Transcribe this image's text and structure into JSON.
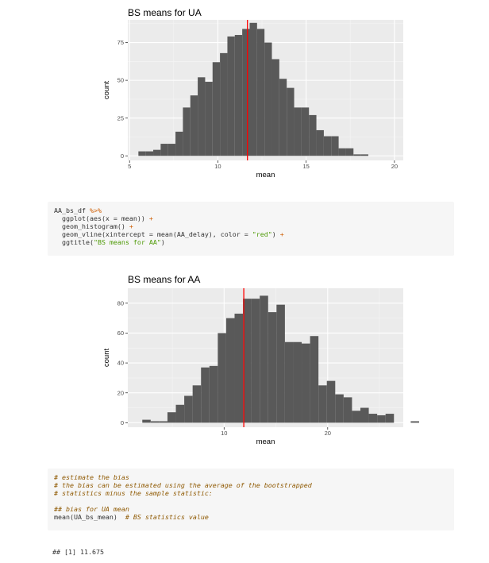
{
  "chart_data": [
    {
      "type": "histogram",
      "title": "BS means for UA",
      "xlabel": "mean",
      "ylabel": "count",
      "xlim": [
        4.9,
        20.5
      ],
      "ylim": [
        -3,
        90
      ],
      "x_ticks": [
        5,
        10,
        15,
        20
      ],
      "x_tick_labels": [
        "5",
        "10",
        "15",
        "20"
      ],
      "y_ticks": [
        0,
        25,
        50,
        75
      ],
      "y_tick_labels": [
        "0",
        "25",
        "50",
        "75"
      ],
      "bin_start": 5.5,
      "bin_width": 0.42,
      "values": [
        3,
        3,
        4,
        8,
        8,
        16,
        32,
        40,
        52,
        49,
        62,
        68,
        79,
        80,
        84,
        88,
        84,
        75,
        64,
        51,
        45,
        32,
        32,
        27,
        17,
        13,
        13,
        5,
        5,
        1,
        1
      ],
      "vline_x": 11.675,
      "bar_color": "#595959",
      "vline_color": "#ff0000",
      "panel_color": "#ebebeb",
      "grid": true
    },
    {
      "type": "histogram",
      "title": "BS means for AA",
      "xlabel": "mean",
      "ylabel": "count",
      "xlim": [
        0.7,
        27.3
      ],
      "ylim": [
        -3,
        90
      ],
      "x_ticks": [
        10,
        20
      ],
      "x_tick_labels": [
        "10",
        "20"
      ],
      "y_ticks": [
        0,
        20,
        40,
        60,
        80
      ],
      "y_tick_labels": [
        "0",
        "20",
        "40",
        "60",
        "80"
      ],
      "bin_start": 2.1,
      "bin_width": 0.81,
      "values": [
        2,
        1,
        1,
        7,
        12,
        18,
        25,
        37,
        38,
        60,
        70,
        73,
        83,
        83,
        85,
        74,
        79,
        54,
        54,
        53,
        58,
        25,
        28,
        19,
        17,
        8,
        10,
        6,
        5,
        6,
        0,
        0,
        1
      ],
      "vline_x": 11.9,
      "bar_color": "#595959",
      "vline_color": "#ff0000",
      "panel_color": "#ebebeb",
      "grid": true
    }
  ],
  "code_block_1": {
    "lines": [
      [
        {
          "t": "AA_bs_df "
        },
        {
          "t": "%>%",
          "c": "op"
        }
      ],
      [
        {
          "t": "  ggplot(aes(x = mean)) "
        },
        {
          "t": "+",
          "c": "op"
        }
      ],
      [
        {
          "t": "  geom_histogram() "
        },
        {
          "t": "+",
          "c": "op"
        }
      ],
      [
        {
          "t": "  geom_vline(xintercept = mean(AA_delay), color = "
        },
        {
          "t": "\"red\"",
          "c": "str"
        },
        {
          "t": ") "
        },
        {
          "t": "+",
          "c": "op"
        }
      ],
      [
        {
          "t": "  ggtitle("
        },
        {
          "t": "\"BS means for AA\"",
          "c": "str"
        },
        {
          "t": ")"
        }
      ]
    ]
  },
  "code_block_2": {
    "lines": [
      [
        {
          "t": "# estimate the bias",
          "c": "comment"
        }
      ],
      [
        {
          "t": "# the bias can be estimated using the average of the bootstrapped",
          "c": "comment"
        }
      ],
      [
        {
          "t": "# statistics minus the sample statistic:",
          "c": "comment"
        }
      ],
      [
        {
          "t": ""
        }
      ],
      [
        {
          "t": "## bias for UA mean",
          "c": "comment"
        }
      ],
      [
        {
          "t": "mean(UA_bs_mean)  "
        },
        {
          "t": "# BS statistics value",
          "c": "comment"
        }
      ]
    ]
  },
  "output_1": "## [1] 11.675"
}
